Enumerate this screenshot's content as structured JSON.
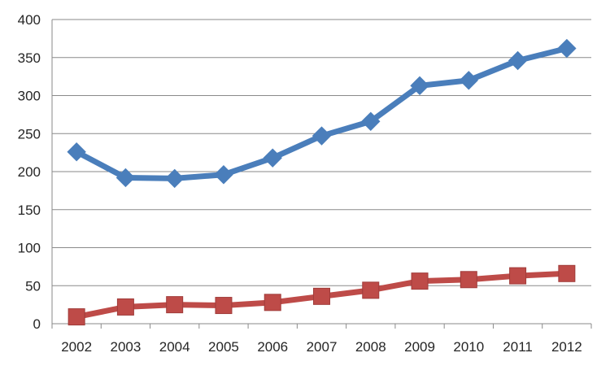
{
  "chart_data": {
    "type": "line",
    "categories": [
      "2002",
      "2003",
      "2004",
      "2005",
      "2006",
      "2007",
      "2008",
      "2009",
      "2010",
      "2011",
      "2012"
    ],
    "series": [
      {
        "marker": "diamond",
        "color": "#4a7ebb",
        "values": [
          226,
          192,
          191,
          196,
          218,
          247,
          266,
          313,
          320,
          346,
          362
        ]
      },
      {
        "marker": "square",
        "color": "#be4b48",
        "values": [
          9,
          22,
          25,
          24,
          28,
          36,
          44,
          56,
          58,
          63,
          66
        ]
      }
    ],
    "y_ticks": [
      "0",
      "50",
      "100",
      "150",
      "200",
      "250",
      "300",
      "350",
      "400"
    ],
    "ylim": [
      0,
      400
    ],
    "grid": "horizontal",
    "legend": "none",
    "title": "",
    "xlabel": "",
    "ylabel": ""
  }
}
